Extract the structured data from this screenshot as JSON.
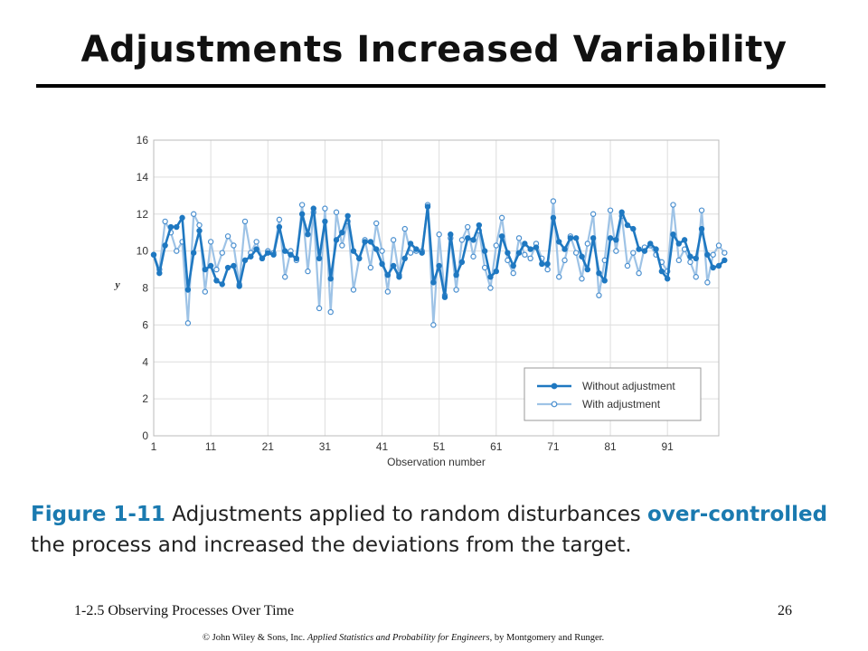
{
  "slide": {
    "title": "Adjustments Increased Variability",
    "caption": {
      "figure_label": "Figure 1-11",
      "text_before": "Adjustments applied to random disturbances ",
      "highlight": "over-controlled",
      "text_after": " the process and increased the deviations from the target."
    },
    "footer": {
      "section": "1-2.5 Observing Processes Over Time",
      "page_number": "26",
      "copyright_prefix": "© John Wiley & Sons, Inc.  ",
      "copyright_book": "Applied Statistics and Probability for Engineers",
      "copyright_suffix": ", by Montgomery and Runger."
    }
  },
  "colors": {
    "without_adjustment": "#1f78c1",
    "with_adjustment": "#9ec3e6",
    "caption_highlight": "#1a7ab0",
    "grid": "#dddddd"
  },
  "chart_data": {
    "type": "line",
    "xlabel": "Observation number",
    "ylabel": "y",
    "xlim": [
      1,
      100
    ],
    "ylim": [
      0,
      16
    ],
    "x_ticks": [
      1,
      11,
      21,
      31,
      41,
      51,
      61,
      71,
      81,
      91
    ],
    "y_ticks": [
      0,
      2,
      4,
      6,
      8,
      10,
      12,
      14,
      16
    ],
    "grid": true,
    "legend_position": "bottom-right",
    "series": [
      {
        "name": "Without adjustment",
        "marker": "filled-circle",
        "values": [
          9.8,
          8.8,
          10.3,
          11.3,
          11.3,
          11.8,
          7.9,
          9.9,
          11.1,
          9.0,
          9.2,
          8.4,
          8.2,
          9.1,
          9.2,
          8.1,
          9.5,
          9.7,
          10.1,
          9.6,
          9.9,
          9.8,
          11.3,
          10.0,
          9.8,
          9.6,
          12.0,
          10.9,
          12.3,
          9.6,
          11.6,
          8.5,
          10.6,
          11.0,
          11.9,
          10.0,
          9.6,
          10.5,
          10.5,
          10.1,
          9.3,
          8.7,
          9.2,
          8.6,
          9.6,
          10.4,
          10.1,
          9.9,
          12.4,
          8.3,
          9.2,
          7.5,
          10.9,
          8.7,
          9.4,
          10.7,
          10.6,
          11.4,
          10.0,
          8.6,
          8.9,
          10.8,
          9.9,
          9.2,
          9.9,
          10.4,
          10.1,
          10.2,
          9.3,
          9.3,
          11.8,
          10.5,
          10.1,
          10.7,
          10.7,
          9.7,
          9.0,
          10.7,
          8.8,
          8.4,
          10.7,
          10.6,
          12.1,
          11.4,
          11.2,
          10.1,
          10.0,
          10.4,
          10.1,
          8.9,
          8.5,
          10.9,
          10.4,
          10.6,
          9.7,
          9.6,
          11.2,
          9.8,
          9.1,
          9.2,
          9.5
        ]
      },
      {
        "name": "With adjustment",
        "marker": "open-circle",
        "values": [
          9.8,
          9.0,
          11.6,
          11.0,
          10.0,
          10.5,
          6.1,
          12.0,
          11.4,
          7.8,
          10.5,
          9.0,
          9.9,
          10.8,
          10.3,
          8.2,
          11.6,
          9.9,
          10.5,
          9.6,
          10.0,
          9.9,
          11.7,
          8.6,
          10.0,
          9.5,
          12.5,
          8.9,
          12.1,
          6.9,
          12.3,
          6.7,
          12.1,
          10.3,
          11.6,
          7.9,
          9.6,
          10.6,
          9.1,
          11.5,
          10.0,
          7.8,
          10.6,
          8.7,
          11.2,
          9.9,
          10.0,
          10.0,
          12.5,
          6.0,
          10.9,
          7.6,
          10.7,
          7.9,
          10.6,
          11.3,
          9.7,
          11.1,
          9.1,
          8.0,
          10.3,
          11.8,
          9.5,
          8.8,
          10.7,
          9.8,
          9.6,
          10.4,
          9.6,
          9.0,
          12.7,
          8.6,
          9.5,
          10.8,
          9.9,
          8.5,
          10.4,
          12.0,
          7.6,
          9.5,
          12.2,
          10.0,
          11.9,
          9.2,
          9.9,
          8.8,
          10.2,
          10.3,
          9.8,
          9.4,
          8.9,
          12.5,
          9.5,
          10.1,
          9.4,
          8.6,
          12.2,
          8.3,
          9.8,
          10.3,
          9.9
        ]
      }
    ]
  }
}
